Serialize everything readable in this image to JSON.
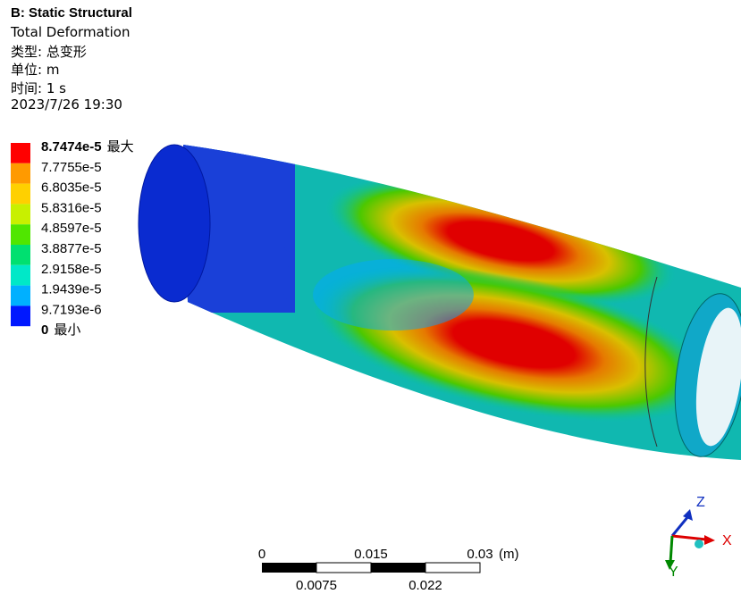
{
  "header": {
    "title": "B: Static Structural",
    "lines": [
      "Total Deformation",
      "类型: 总变形",
      "单位: m",
      "时间: 1 s",
      "2023/7/26 19:30"
    ]
  },
  "legend": {
    "entries": [
      {
        "label": "8.7474e-5",
        "tag": "最大"
      },
      {
        "label": "7.7755e-5"
      },
      {
        "label": "6.8035e-5"
      },
      {
        "label": "5.8316e-5"
      },
      {
        "label": "4.8597e-5"
      },
      {
        "label": "3.8877e-5"
      },
      {
        "label": "2.9158e-5"
      },
      {
        "label": "1.9439e-5"
      },
      {
        "label": "9.7193e-6"
      },
      {
        "label": "0",
        "tag": "最小"
      }
    ],
    "colors": [
      "#ff0000",
      "#ff9a00",
      "#ffd000",
      "#c8f000",
      "#50e600",
      "#00e070",
      "#00e8c8",
      "#00b0ff",
      "#0018ff"
    ]
  },
  "scale_bar": {
    "top": [
      "0",
      "0.015",
      "0.03"
    ],
    "unit": "(m)",
    "bottom": [
      "0.0075",
      "0.022"
    ]
  },
  "triad": {
    "z": "Z",
    "x": "X",
    "y": "Y"
  }
}
